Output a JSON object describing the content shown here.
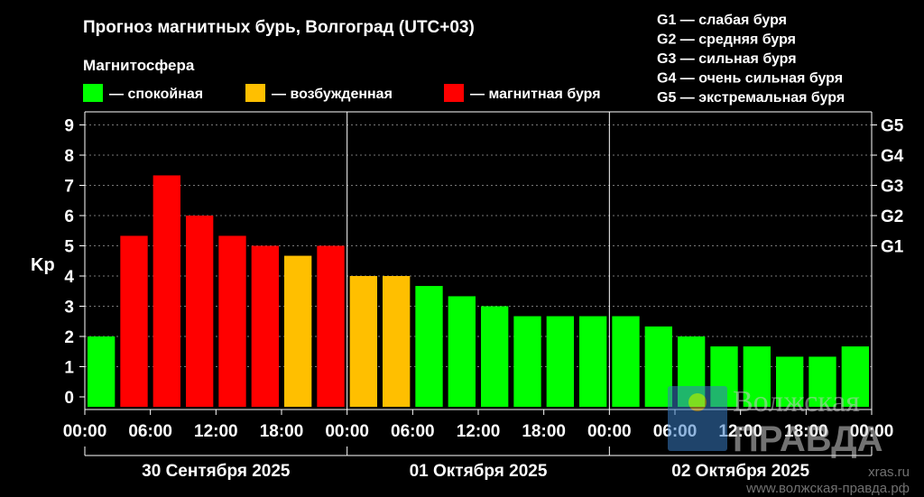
{
  "chart_data": {
    "type": "bar",
    "title": "Прогноз магнитных бурь, Волгоград (UTC+03)",
    "legend_title": "Магнитосфера",
    "legend": [
      {
        "label": "— спокойная",
        "color": "#00ff00"
      },
      {
        "label": "— возбужденная",
        "color": "#ffbf00"
      },
      {
        "label": "— магнитная буря",
        "color": "#ff0000"
      }
    ],
    "g_scale": [
      "G1 — слабая буря",
      "G2 — средняя буря",
      "G3 — сильная буря",
      "G4 — очень сильная буря",
      "G5 — экстремальная буря"
    ],
    "ylabel": "Kp",
    "ylim": [
      0,
      9
    ],
    "yticks": [
      "0",
      "1",
      "2",
      "3",
      "4",
      "5",
      "6",
      "7",
      "8",
      "9"
    ],
    "right_ticks": [
      {
        "label": "G1",
        "value": 5
      },
      {
        "label": "G2",
        "value": 6
      },
      {
        "label": "G3",
        "value": 7
      },
      {
        "label": "G4",
        "value": 8
      },
      {
        "label": "G5",
        "value": 9
      }
    ],
    "grid": true,
    "xtick_labels": [
      "00:00",
      "06:00",
      "12:00",
      "18:00",
      "00:00",
      "06:00",
      "12:00",
      "18:00",
      "00:00",
      "06:00",
      "12:00",
      "18:00",
      "00:00"
    ],
    "days": [
      "30 Сентября 2025",
      "01 Октября 2025",
      "02 Октября 2025"
    ],
    "values": [
      2.0,
      5.33,
      7.33,
      6.0,
      5.33,
      5.0,
      4.67,
      5.0,
      4.0,
      4.0,
      3.67,
      3.33,
      3.0,
      2.67,
      2.67,
      2.67,
      2.67,
      2.33,
      2.0,
      1.67,
      1.67,
      1.33,
      1.33,
      1.67
    ],
    "levels": [
      "quiet",
      "storm",
      "storm",
      "storm",
      "storm",
      "storm",
      "active",
      "storm",
      "active",
      "active",
      "quiet",
      "quiet",
      "quiet",
      "quiet",
      "quiet",
      "quiet",
      "quiet",
      "quiet",
      "quiet",
      "quiet",
      "quiet",
      "quiet",
      "quiet",
      "quiet"
    ],
    "level_colors": {
      "quiet": "#00ff00",
      "active": "#ffbf00",
      "storm": "#ff0000"
    }
  },
  "watermark": {
    "name": "Волжская правда",
    "site": "xras.ru",
    "url": "www.волжская-правда.рф"
  }
}
